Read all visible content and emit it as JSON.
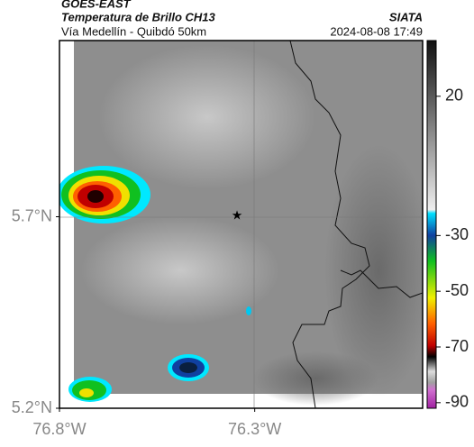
{
  "header": {
    "satellite": "GOES-EAST",
    "product": "Temperatura de Brillo CH13",
    "agency": "SIATA",
    "route": "Vía Medellín - Quibdó 50km",
    "timestamp": "2024-08-08 17:49"
  },
  "map": {
    "lon_range": [
      -76.8,
      -75.87
    ],
    "lat_range": [
      5.2,
      6.16
    ],
    "lon_ticks": [
      {
        "value": -76.8,
        "label": "76.8°W"
      },
      {
        "value": -76.3,
        "label": "76.3°W"
      }
    ],
    "lat_ticks": [
      {
        "value": 5.7,
        "label": "5.7°N"
      },
      {
        "value": 5.2,
        "label": "5.2°N"
      }
    ]
  },
  "colorbar": {
    "clim": [
      40,
      -92
    ],
    "ticks": [
      20,
      -30,
      -50,
      -70,
      -90
    ]
  }
}
